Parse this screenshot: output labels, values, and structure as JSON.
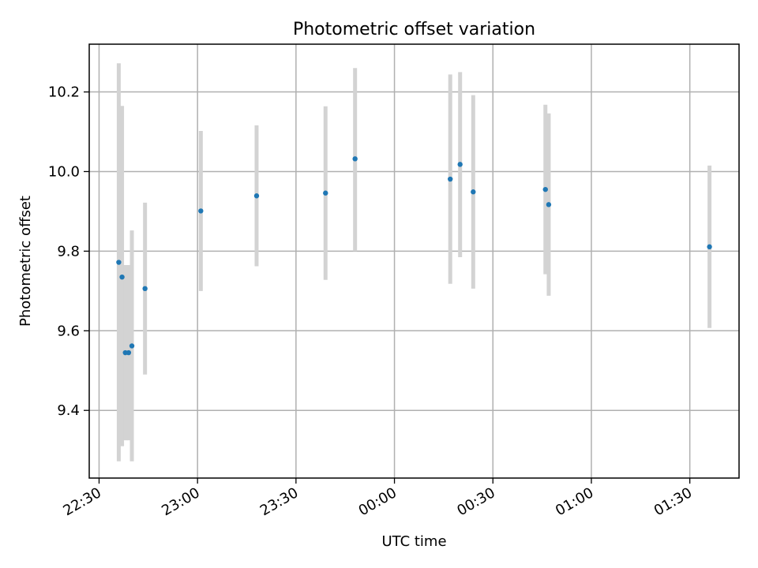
{
  "chart_data": {
    "type": "scatter",
    "title": "Photometric offset variation",
    "xlabel": "UTC time",
    "ylabel": "Photometric offset",
    "grid": true,
    "x_axis_kind": "time",
    "x_range": [
      "22:27",
      "01:45"
    ],
    "xlim": [
      "22:27",
      "01:45"
    ],
    "ylim": [
      9.23,
      10.32
    ],
    "x_ticks": [
      "22:30",
      "23:00",
      "23:30",
      "00:00",
      "00:30",
      "01:00",
      "01:30"
    ],
    "y_ticks": [
      9.4,
      9.6,
      9.8,
      10.0,
      10.2
    ],
    "y_tick_labels": [
      "9.4",
      "9.6",
      "9.8",
      "10.0",
      "10.2"
    ],
    "point_color": "#1f77b4",
    "errorbar_color": "#d3d3d3",
    "points": [
      {
        "t": "22:36",
        "y": 9.772,
        "ymin": 9.272,
        "ymax": 10.272
      },
      {
        "t": "22:37",
        "y": 9.735,
        "ymin": 9.31,
        "ymax": 10.165
      },
      {
        "t": "22:38",
        "y": 9.545,
        "ymin": 9.325,
        "ymax": 9.765
      },
      {
        "t": "22:39",
        "y": 9.545,
        "ymin": 9.325,
        "ymax": 9.765
      },
      {
        "t": "22:40",
        "y": 9.562,
        "ymin": 9.272,
        "ymax": 9.852
      },
      {
        "t": "22:44",
        "y": 9.706,
        "ymin": 9.49,
        "ymax": 9.922
      },
      {
        "t": "23:01",
        "y": 9.901,
        "ymin": 9.7,
        "ymax": 10.102
      },
      {
        "t": "23:18",
        "y": 9.939,
        "ymin": 9.762,
        "ymax": 10.116
      },
      {
        "t": "23:39",
        "y": 9.946,
        "ymin": 9.728,
        "ymax": 10.164
      },
      {
        "t": "23:48",
        "y": 10.032,
        "ymin": 9.8,
        "ymax": 10.26
      },
      {
        "t": "00:17",
        "y": 9.981,
        "ymin": 9.718,
        "ymax": 10.244
      },
      {
        "t": "00:20",
        "y": 10.018,
        "ymin": 9.785,
        "ymax": 10.25
      },
      {
        "t": "00:24",
        "y": 9.949,
        "ymin": 9.706,
        "ymax": 10.192
      },
      {
        "t": "00:46",
        "y": 9.955,
        "ymin": 9.742,
        "ymax": 10.168
      },
      {
        "t": "00:47",
        "y": 9.917,
        "ymin": 9.688,
        "ymax": 10.146
      },
      {
        "t": "01:36",
        "y": 9.811,
        "ymin": 9.607,
        "ymax": 10.015
      }
    ]
  }
}
